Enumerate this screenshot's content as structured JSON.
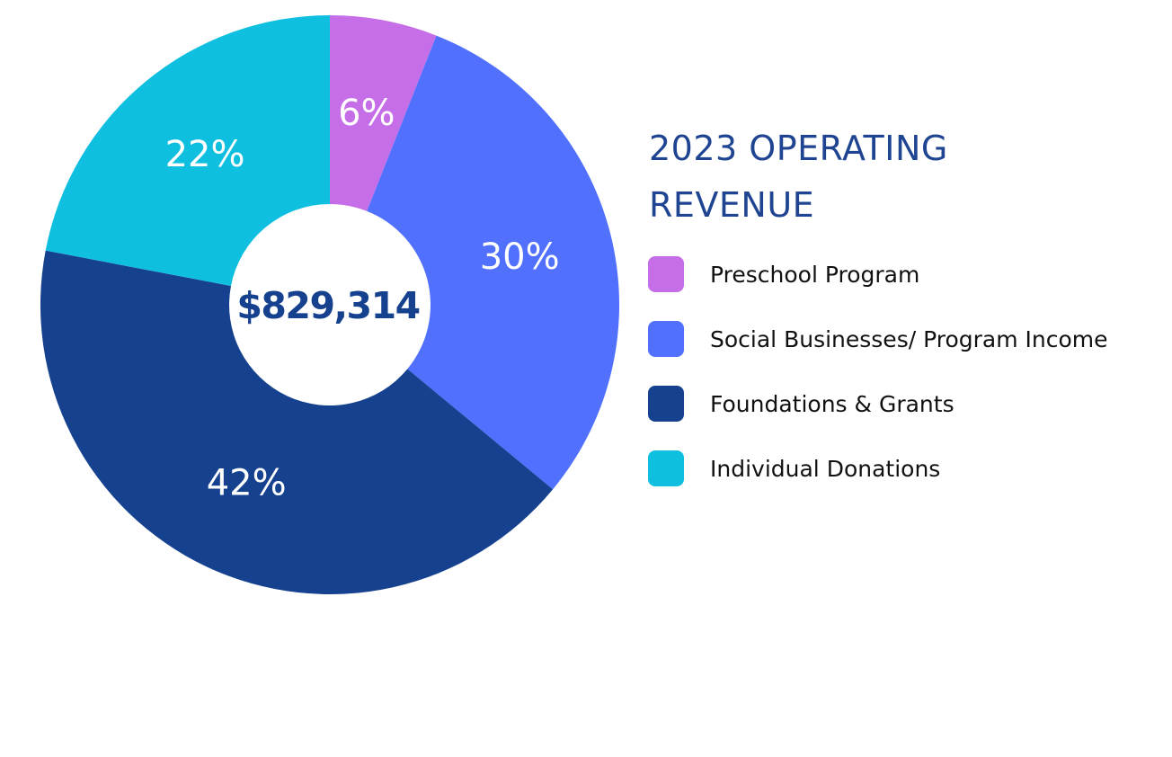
{
  "chart_data": {
    "type": "pie",
    "title_lines": [
      "2023 OPERATING",
      "REVENUE"
    ],
    "total_label": "$829,314",
    "slices": [
      {
        "name": "Preschool Program",
        "value": 6,
        "label": "6%",
        "color": "#c56ee8"
      },
      {
        "name": "Social Businesses/ Program Income",
        "value": 30,
        "label": "30%",
        "color": "#5170fe"
      },
      {
        "name": "Foundations & Grants",
        "value": 42,
        "label": "42%",
        "color": "#15418f"
      },
      {
        "name": "Individual Donations",
        "value": 22,
        "label": "22%",
        "color": "#0fbfdf"
      }
    ],
    "legend_position": "right"
  }
}
